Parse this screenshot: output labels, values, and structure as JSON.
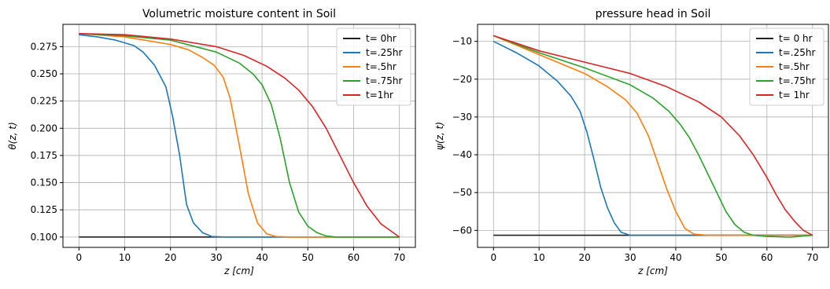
{
  "chart_data": [
    {
      "type": "line",
      "title": "Volumetric moisture content in Soil",
      "xlabel": "z [cm]",
      "ylabel": "θ(z, t)",
      "xlim": [
        -3.5,
        73.5
      ],
      "ylim": [
        0.0905,
        0.2955
      ],
      "xticks": [
        0,
        10,
        20,
        30,
        40,
        50,
        60,
        70
      ],
      "yticks": [
        0.1,
        0.125,
        0.15,
        0.175,
        0.2,
        0.225,
        0.25,
        0.275
      ],
      "ytick_labels": [
        "0.100",
        "0.125",
        "0.150",
        "0.175",
        "0.200",
        "0.225",
        "0.250",
        "0.275"
      ],
      "grid": true,
      "legend_placement": "top-right",
      "series": [
        {
          "name": "t= 0hr",
          "color": "#222222",
          "x": [
            0,
            70
          ],
          "y": [
            0.1,
            0.1
          ]
        },
        {
          "name": "t=.25hr",
          "color": "#1f77b4",
          "x": [
            0,
            4,
            8,
            12,
            14,
            16.5,
            19,
            20.5,
            22,
            23.5,
            25,
            27,
            29,
            32,
            40,
            50,
            60,
            70
          ],
          "y": [
            0.286,
            0.284,
            0.281,
            0.276,
            0.27,
            0.258,
            0.238,
            0.21,
            0.175,
            0.13,
            0.113,
            0.104,
            0.1005,
            0.1,
            0.1,
            0.1,
            0.1,
            0.1
          ]
        },
        {
          "name": "t=.5hr",
          "color": "#ff7f0e",
          "x": [
            0,
            10,
            20,
            24,
            27,
            29.5,
            31.5,
            33,
            35,
            37,
            39,
            41,
            43,
            46,
            55,
            70
          ],
          "y": [
            0.287,
            0.284,
            0.277,
            0.272,
            0.265,
            0.258,
            0.247,
            0.228,
            0.185,
            0.14,
            0.113,
            0.103,
            0.1005,
            0.1,
            0.1,
            0.1
          ]
        },
        {
          "name": "t=.75hr",
          "color": "#2ca02c",
          "x": [
            0,
            10,
            20,
            30,
            35,
            38,
            40,
            42,
            44,
            46,
            48,
            50,
            52,
            54,
            56,
            60,
            70
          ],
          "y": [
            0.287,
            0.285,
            0.281,
            0.27,
            0.26,
            0.25,
            0.24,
            0.222,
            0.19,
            0.15,
            0.123,
            0.11,
            0.104,
            0.101,
            0.1,
            0.1,
            0.1
          ]
        },
        {
          "name": "t=1hr",
          "color": "#d62728",
          "x": [
            0,
            10,
            20,
            30,
            36,
            41,
            45,
            48,
            51,
            54,
            57,
            60,
            63,
            66,
            68,
            70
          ],
          "y": [
            0.287,
            0.286,
            0.282,
            0.275,
            0.267,
            0.257,
            0.246,
            0.235,
            0.22,
            0.2,
            0.175,
            0.15,
            0.128,
            0.112,
            0.106,
            0.1
          ]
        }
      ]
    },
    {
      "type": "line",
      "title": "pressure head  in Soil",
      "xlabel": "z [cm]",
      "ylabel": "ψ(z, t)",
      "xlim": [
        -3.5,
        73.5
      ],
      "ylim": [
        -64.5,
        -5.5
      ],
      "xticks": [
        0,
        10,
        20,
        30,
        40,
        50,
        60,
        70
      ],
      "yticks": [
        -10,
        -20,
        -30,
        -40,
        -50,
        -60
      ],
      "ytick_labels": [
        "−10",
        "−20",
        "−30",
        "−40",
        "−50",
        "−60"
      ],
      "grid": true,
      "legend_placement": "top-right",
      "series": [
        {
          "name": "t= 0 hr",
          "color": "#222222",
          "x": [
            0,
            70
          ],
          "y": [
            -61.3,
            -61.3
          ]
        },
        {
          "name": "t=.25hr",
          "color": "#1f77b4",
          "x": [
            0,
            5,
            10,
            14,
            17,
            19,
            20.5,
            22,
            23.5,
            25,
            26.5,
            28,
            30,
            40,
            70
          ],
          "y": [
            -10,
            -13,
            -16.5,
            -20.5,
            -24.5,
            -28.5,
            -34,
            -41,
            -48.5,
            -54,
            -58,
            -60.5,
            -61.3,
            -61.3,
            -61.3
          ]
        },
        {
          "name": "t=.5hr",
          "color": "#ff7f0e",
          "x": [
            0,
            10,
            20,
            25,
            29,
            31.5,
            34,
            36,
            38,
            40,
            42,
            44,
            47,
            55,
            70
          ],
          "y": [
            -8.5,
            -13.5,
            -18.5,
            -22,
            -25.5,
            -29,
            -35,
            -42,
            -49,
            -55,
            -59.5,
            -61,
            -61.3,
            -61.3,
            -61.3
          ]
        },
        {
          "name": "t=.75hr",
          "color": "#2ca02c",
          "x": [
            0,
            10,
            20,
            30,
            35,
            38.5,
            41,
            43,
            45,
            47,
            49,
            51,
            53,
            55,
            57,
            60,
            65,
            70
          ],
          "y": [
            -8.5,
            -13,
            -17,
            -21.5,
            -25,
            -28.5,
            -32,
            -35.5,
            -40,
            -45,
            -50,
            -55,
            -58.5,
            -60.5,
            -61.3,
            -61.6,
            -61.8,
            -61.3
          ]
        },
        {
          "name": "t= 1hr",
          "color": "#d62728",
          "x": [
            0,
            10,
            20,
            30,
            38,
            45,
            50,
            54,
            57,
            60,
            62,
            64,
            66,
            68,
            70
          ],
          "y": [
            -8.5,
            -12.5,
            -15.5,
            -18.5,
            -22,
            -26,
            -30,
            -35,
            -40,
            -46,
            -50.5,
            -54.5,
            -57.5,
            -60,
            -61.3
          ]
        }
      ]
    }
  ]
}
